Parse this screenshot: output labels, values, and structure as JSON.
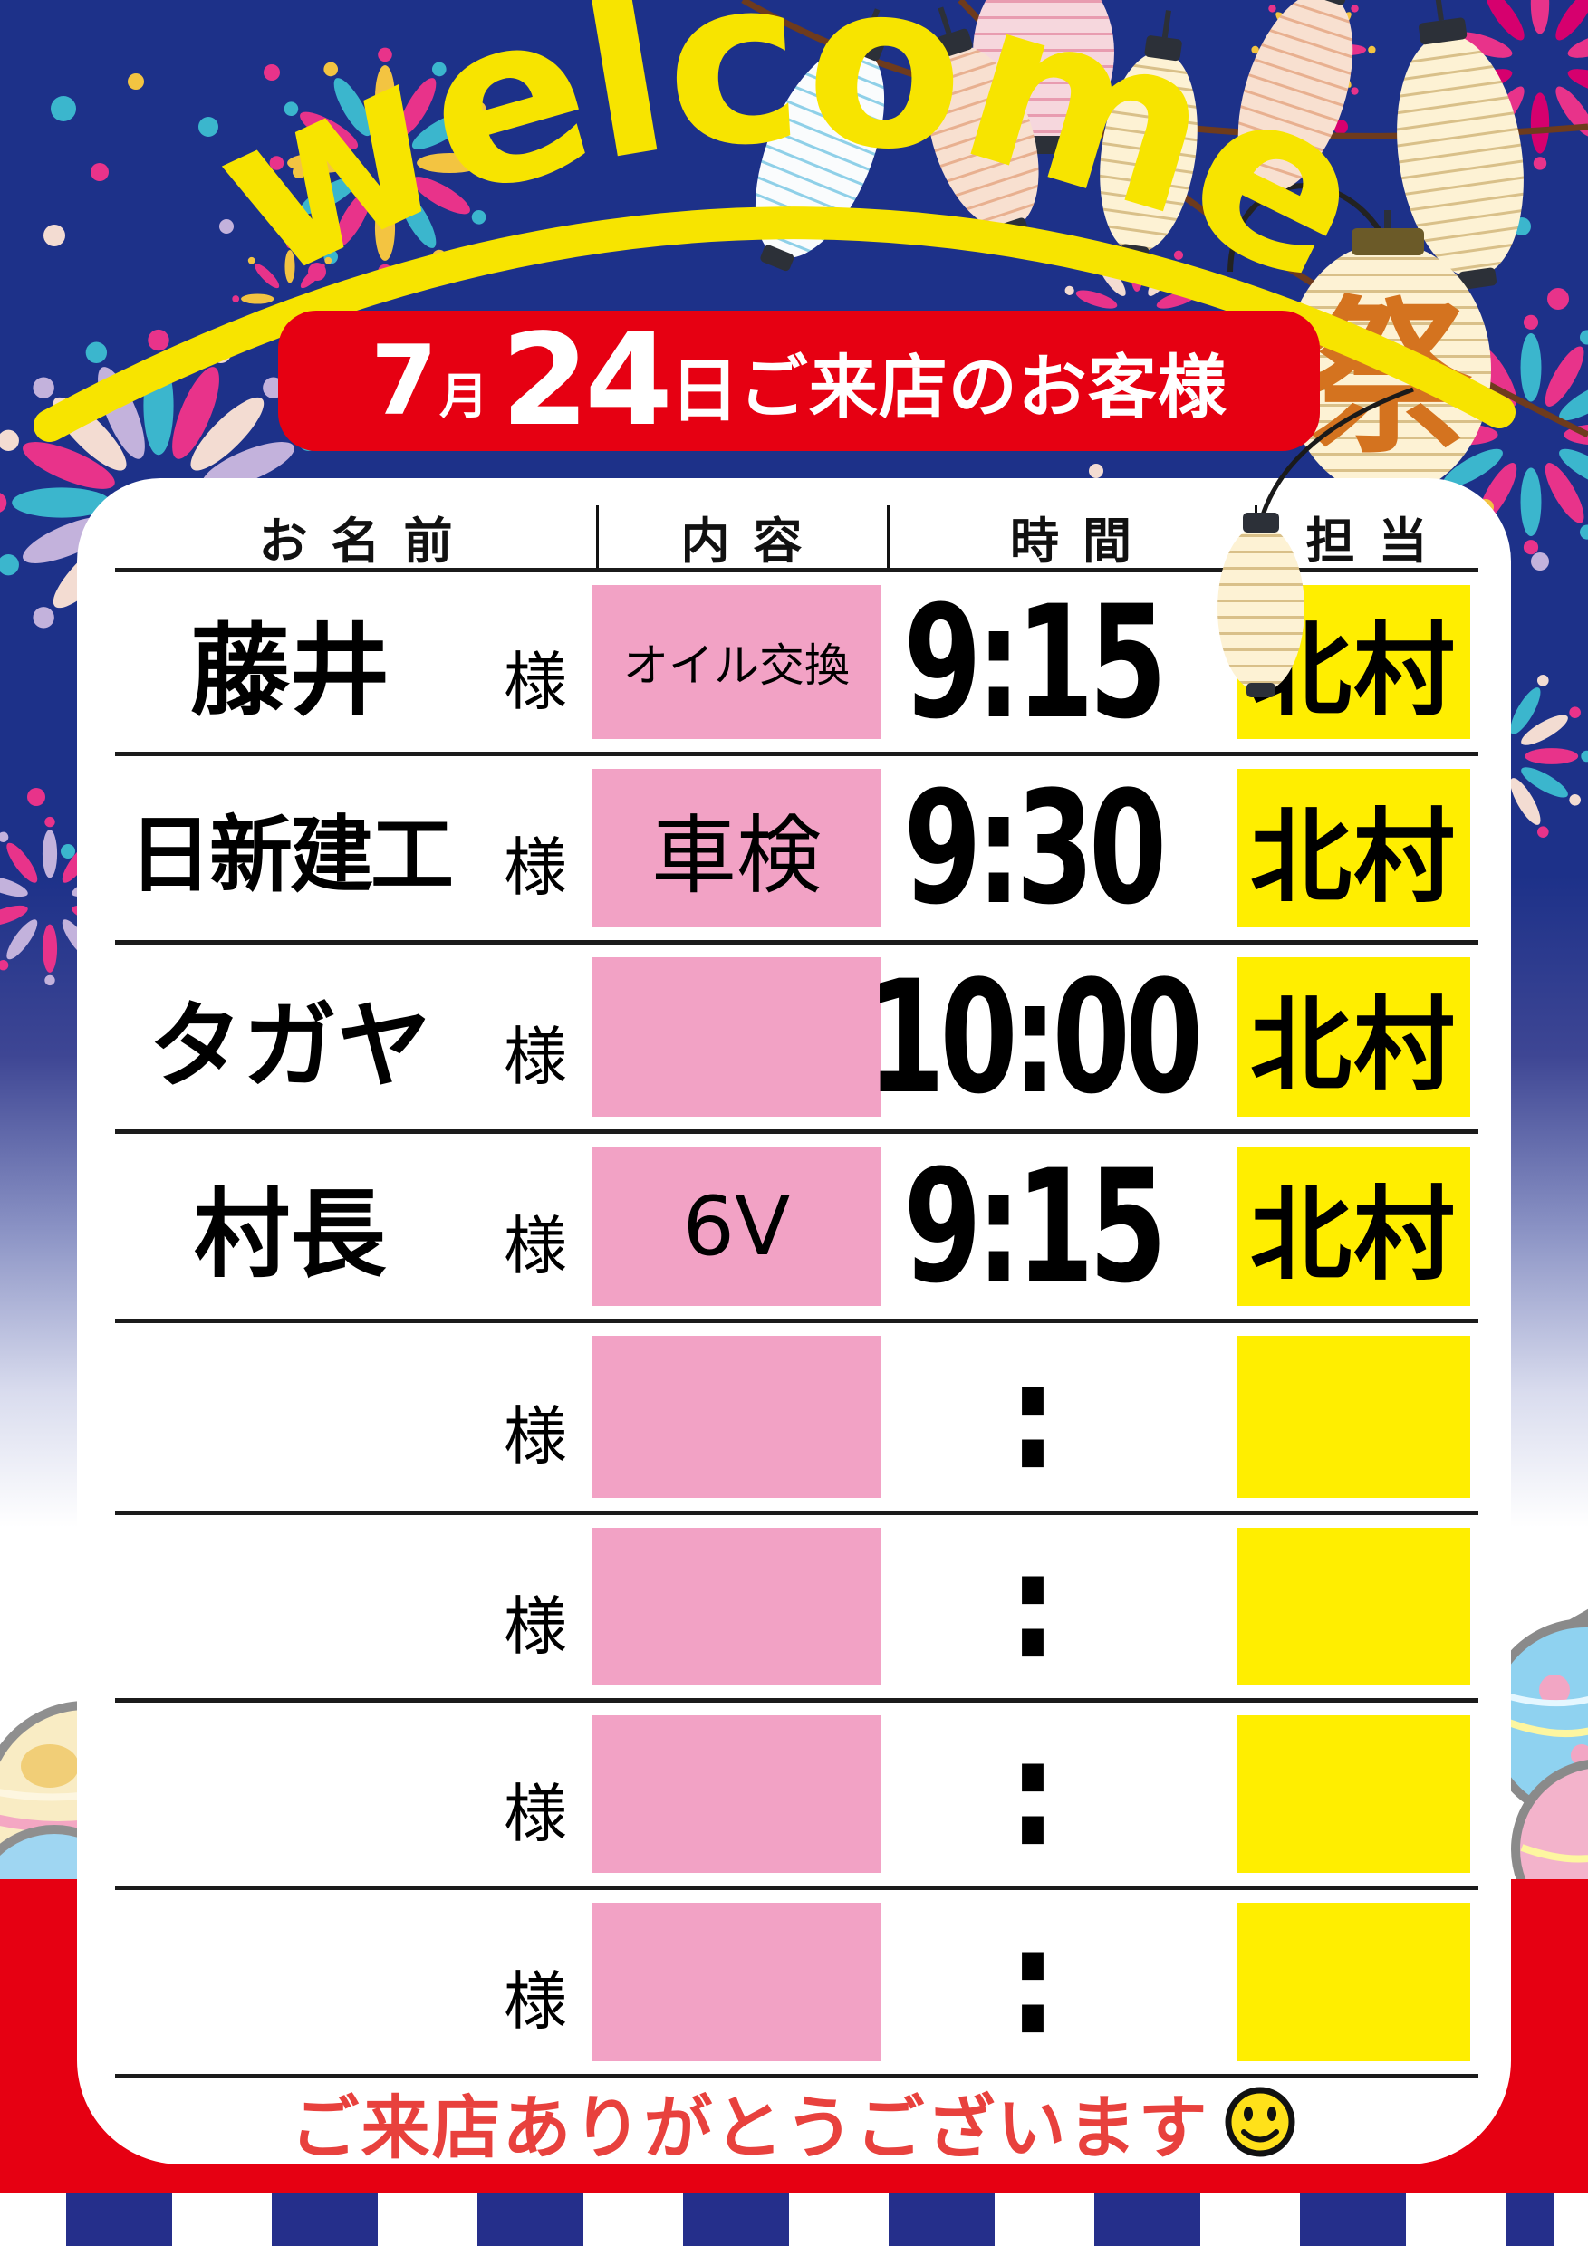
{
  "header": {
    "welcome_text": "welcome",
    "festival_lantern_char": "祭"
  },
  "date_banner": {
    "month": "7",
    "month_unit": "月",
    "day": "24",
    "day_unit": "日",
    "suffix": "ご来店のお客様"
  },
  "table": {
    "headers": {
      "name": "お名前",
      "content": "内容",
      "time": "時間",
      "staff": "担当"
    },
    "honorific": "様",
    "rows": [
      {
        "name": "藤井",
        "content": "オイル交換",
        "time": "9:15",
        "staff": "北村"
      },
      {
        "name": "日新建工",
        "content": "車検",
        "time": "9:30",
        "staff": "北村"
      },
      {
        "name": "タガヤ",
        "content": "",
        "time": "10:00",
        "staff": "北村"
      },
      {
        "name": "村長",
        "content": "6V",
        "time": "9:15",
        "staff": "北村"
      },
      {
        "name": "",
        "content": "",
        "time": ":",
        "staff": ""
      },
      {
        "name": "",
        "content": "",
        "time": ":",
        "staff": ""
      },
      {
        "name": "",
        "content": "",
        "time": ":",
        "staff": ""
      },
      {
        "name": "",
        "content": "",
        "time": ":",
        "staff": ""
      }
    ]
  },
  "footer": {
    "thanks_message": "ご来店ありがとうございます",
    "smiley_icon": "smiley-face"
  },
  "colors": {
    "navy_bg": "#1d3189",
    "banner_red": "#e60012",
    "highlight_pink": "#f2a2c5",
    "highlight_yellow": "#ffee00",
    "accent_yellow": "#f7e400",
    "thanks_red": "#e8413d",
    "stripe_blue": "#252f8b"
  }
}
